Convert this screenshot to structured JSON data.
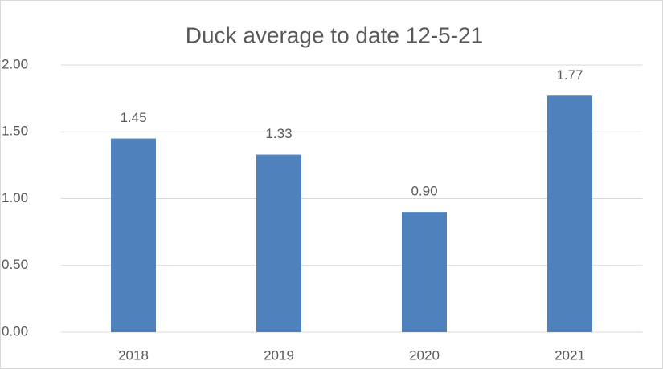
{
  "chart_data": {
    "type": "bar",
    "title": "Duck average to date 12-5-21",
    "categories": [
      "2018",
      "2019",
      "2020",
      "2021"
    ],
    "values": [
      1.45,
      1.33,
      0.9,
      1.77
    ],
    "value_labels": [
      "1.45",
      "1.33",
      "0.90",
      "1.77"
    ],
    "color": "#4f81bd",
    "ylim": [
      0,
      2
    ],
    "yticks": [
      {
        "value": 0,
        "label": "0.00"
      },
      {
        "value": 0.5,
        "label": "0.50"
      },
      {
        "value": 1,
        "label": "1.00"
      },
      {
        "value": 1.5,
        "label": "1.50"
      },
      {
        "value": 2,
        "label": "2.00"
      }
    ],
    "grid": true
  }
}
